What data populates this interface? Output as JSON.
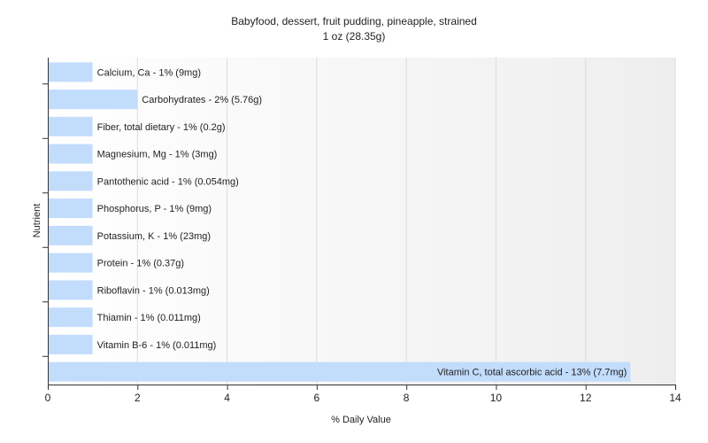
{
  "chart_data": {
    "type": "bar",
    "orientation": "horizontal",
    "title": "Babyfood, dessert, fruit pudding, pineapple, strained",
    "subtitle": "1 oz (28.35g)",
    "xlabel": "% Daily Value",
    "ylabel": "Nutrient",
    "xlim": [
      0,
      14
    ],
    "xticks": [
      0,
      2,
      4,
      6,
      8,
      10,
      12,
      14
    ],
    "grid": true,
    "bar_color": "#c2dcfc",
    "categories": [
      "Calcium, Ca",
      "Carbohydrates",
      "Fiber, total dietary",
      "Magnesium, Mg",
      "Pantothenic acid",
      "Phosphorus, P",
      "Potassium, K",
      "Protein",
      "Riboflavin",
      "Thiamin",
      "Vitamin B-6",
      "Vitamin C, total ascorbic acid"
    ],
    "values": [
      1,
      2,
      1,
      1,
      1,
      1,
      1,
      1,
      1,
      1,
      1,
      13
    ],
    "data_labels": [
      "Calcium, Ca - 1% (9mg)",
      "Carbohydrates - 2% (5.76g)",
      "Fiber, total dietary - 1% (0.2g)",
      "Magnesium, Mg - 1% (3mg)",
      "Pantothenic acid - 1% (0.054mg)",
      "Phosphorus, P - 1% (9mg)",
      "Potassium, K - 1% (23mg)",
      "Protein - 1% (0.37g)",
      "Riboflavin - 1% (0.013mg)",
      "Thiamin - 1% (0.011mg)",
      "Vitamin B-6 - 1% (0.011mg)",
      "Vitamin C, total ascorbic acid - 13% (7.7mg)"
    ]
  }
}
